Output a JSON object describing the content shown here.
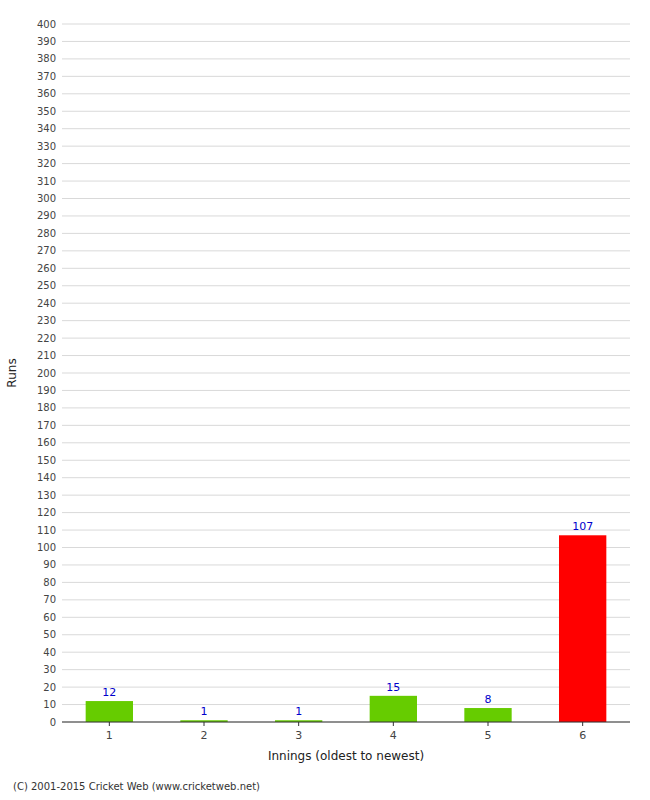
{
  "chart_data": {
    "type": "bar",
    "xlabel": "Innings (oldest to newest)",
    "ylabel": "Runs",
    "categories": [
      "1",
      "2",
      "3",
      "4",
      "5",
      "6"
    ],
    "values": [
      12,
      1,
      1,
      15,
      8,
      107
    ],
    "colors": [
      "#66cc00",
      "#66cc00",
      "#66cc00",
      "#66cc00",
      "#66cc00",
      "#ff0000"
    ],
    "ylim": [
      0,
      400
    ],
    "yticks": [
      0,
      10,
      20,
      30,
      40,
      50,
      60,
      70,
      80,
      90,
      100,
      110,
      120,
      130,
      140,
      150,
      160,
      170,
      180,
      190,
      200,
      210,
      220,
      230,
      240,
      250,
      260,
      270,
      280,
      290,
      300,
      310,
      320,
      330,
      340,
      350,
      360,
      370,
      380,
      390,
      400
    ],
    "grid": true,
    "data_labels": true,
    "annotations": [
      "(C) 2001-2015 Cricket Web (www.cricketweb.net)"
    ]
  }
}
